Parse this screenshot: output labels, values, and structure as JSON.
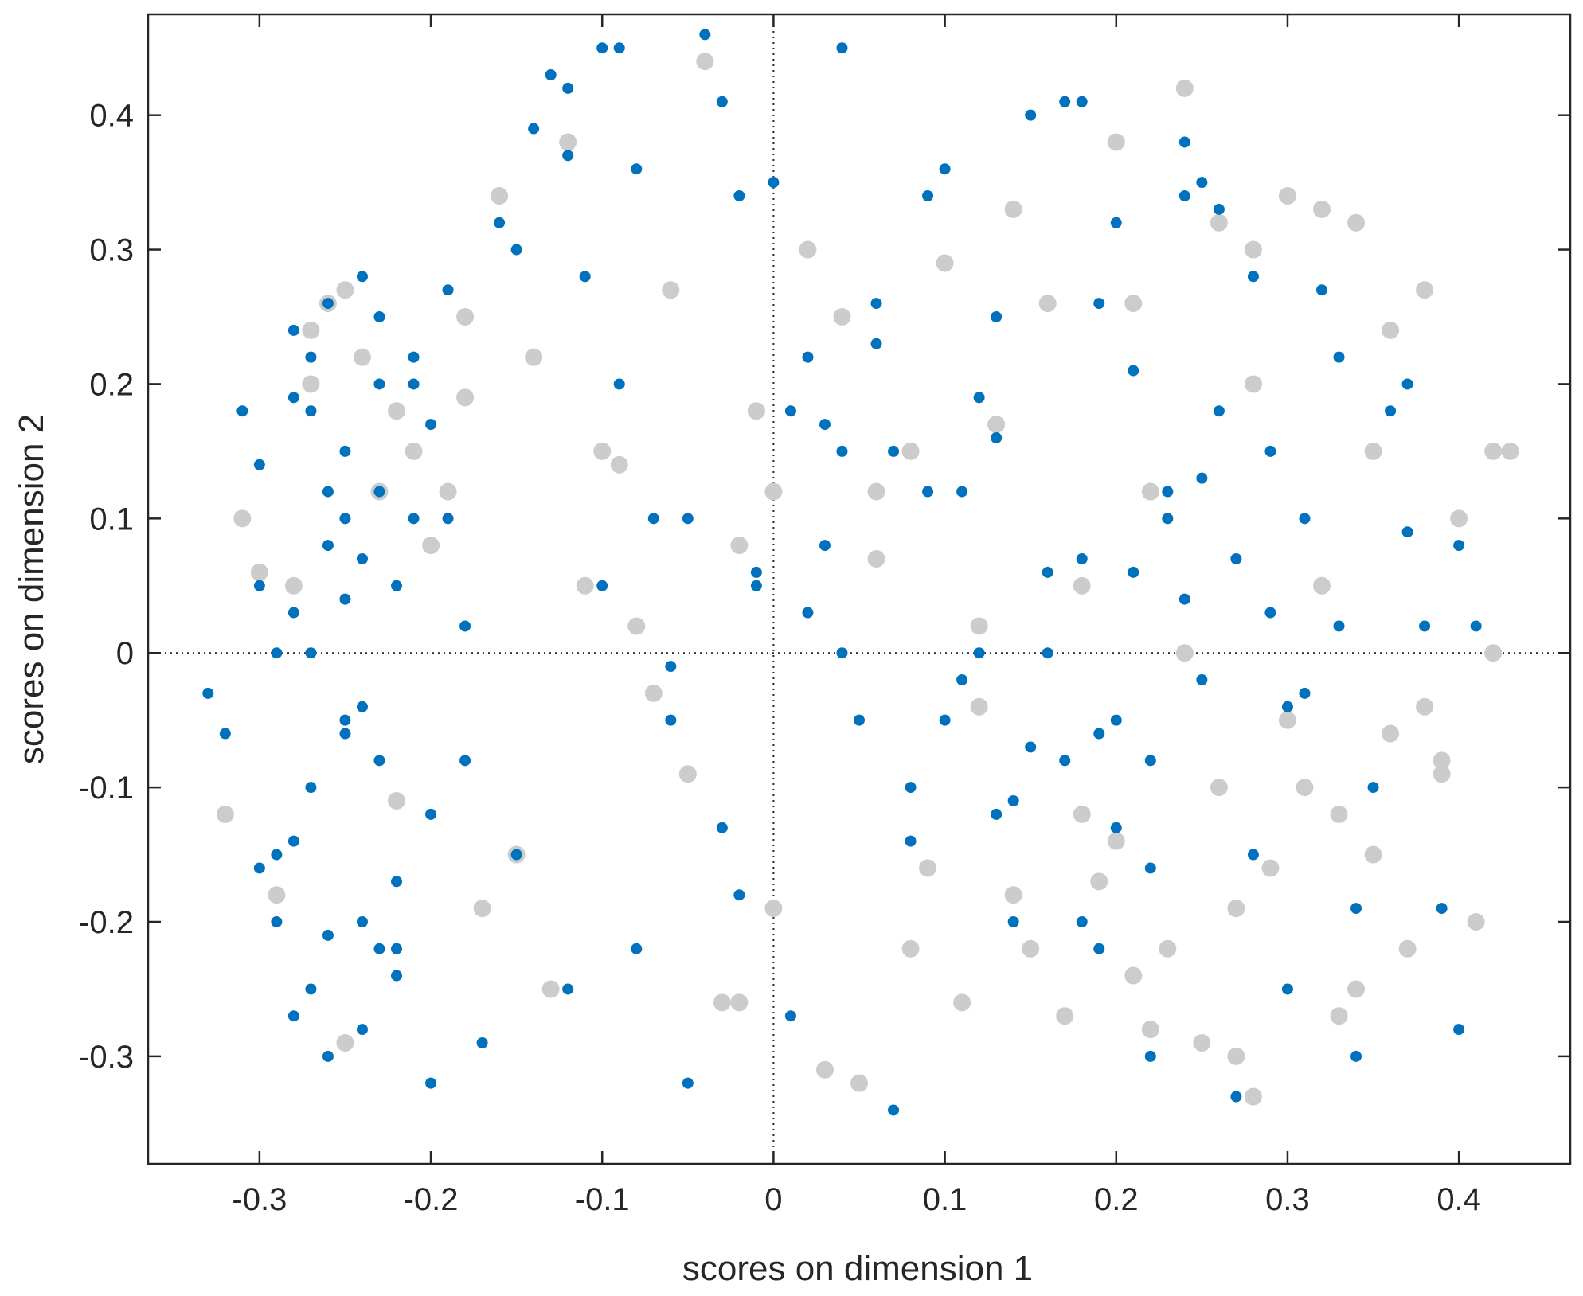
{
  "chart_data": {
    "type": "scatter",
    "title": "",
    "xlabel": "scores on dimension 1",
    "ylabel": "scores on dimension 2",
    "xlim": [
      -0.365,
      0.465
    ],
    "ylim": [
      -0.38,
      0.475
    ],
    "xticks": [
      -0.3,
      -0.2,
      -0.1,
      0,
      0.1,
      0.2,
      0.3,
      0.4
    ],
    "yticks": [
      -0.3,
      -0.2,
      -0.1,
      0,
      0.1,
      0.2,
      0.3,
      0.4
    ],
    "xtick_labels": [
      "-0.3",
      "-0.2",
      "-0.1",
      "0",
      "0.1",
      "0.2",
      "0.3",
      "0.4"
    ],
    "ytick_labels": [
      "-0.3",
      "-0.2",
      "-0.1",
      "0",
      "0.1",
      "0.2",
      "0.3",
      "0.4"
    ],
    "reference_lines": {
      "x": 0,
      "y": 0,
      "style": "dotted"
    },
    "grid": false,
    "legend": "none",
    "colors": {
      "series_1": "#0072bd",
      "series_2": "#cccccc",
      "axes": "#262626"
    },
    "series": [
      {
        "color": "#cccccc",
        "marker": "large-dot",
        "x": [
          -0.31,
          -0.3,
          -0.28,
          -0.27,
          -0.26,
          -0.25,
          -0.24,
          -0.23,
          -0.22,
          -0.21,
          -0.2,
          -0.19,
          -0.18,
          -0.16,
          -0.14,
          -0.12,
          -0.1,
          -0.08,
          -0.06,
          -0.04,
          -0.02,
          0.0,
          0.02,
          0.04,
          0.06,
          0.08,
          0.1,
          0.12,
          0.14,
          0.16,
          0.18,
          0.2,
          0.22,
          0.24,
          0.26,
          0.28,
          0.3,
          0.32,
          0.34,
          0.36,
          0.38,
          0.4,
          0.42,
          0.43,
          -0.32,
          -0.29,
          -0.22,
          -0.17,
          -0.13,
          -0.07,
          -0.02,
          0.03,
          0.09,
          0.15,
          0.21,
          0.27,
          0.33,
          0.39,
          0.25,
          0.19,
          0.28,
          0.34,
          0.31,
          0.22,
          0.12,
          0.05,
          -0.05,
          -0.15,
          -0.25,
          0.36,
          0.41,
          0.37,
          0.29,
          0.17,
          0.23,
          0.3,
          0.35,
          0.26,
          0.18,
          0.08,
          0.0,
          -0.03,
          -0.11,
          0.14,
          0.24,
          0.32,
          0.38,
          0.2,
          0.11,
          0.27,
          0.33,
          0.39,
          0.42,
          0.35,
          0.28,
          0.21,
          0.13,
          0.06,
          -0.01,
          -0.09,
          -0.18,
          -0.27
        ],
        "y": [
          0.1,
          0.06,
          0.05,
          0.2,
          0.26,
          0.27,
          0.22,
          0.12,
          0.18,
          0.15,
          0.08,
          0.12,
          0.19,
          0.34,
          0.22,
          0.38,
          0.15,
          0.02,
          0.27,
          0.44,
          0.08,
          0.12,
          0.3,
          0.25,
          0.07,
          0.15,
          0.29,
          0.02,
          0.33,
          0.26,
          0.05,
          0.38,
          0.12,
          0.42,
          0.32,
          0.2,
          0.34,
          0.33,
          0.32,
          0.24,
          0.27,
          0.1,
          0.15,
          0.15,
          -0.12,
          -0.18,
          -0.11,
          -0.19,
          -0.25,
          -0.03,
          -0.26,
          -0.31,
          -0.16,
          -0.22,
          -0.24,
          -0.3,
          -0.12,
          -0.08,
          -0.29,
          -0.17,
          -0.33,
          -0.25,
          -0.1,
          -0.28,
          -0.04,
          -0.32,
          -0.09,
          -0.15,
          -0.29,
          -0.06,
          -0.2,
          -0.22,
          -0.16,
          -0.27,
          -0.22,
          -0.05,
          -0.15,
          -0.1,
          -0.12,
          -0.22,
          -0.19,
          -0.26,
          0.05,
          -0.18,
          0.0,
          0.05,
          -0.04,
          -0.14,
          -0.26,
          -0.19,
          -0.27,
          -0.09,
          0.0,
          0.15,
          0.3,
          0.26,
          0.17,
          0.12,
          0.18,
          0.14,
          0.25,
          0.24
        ]
      },
      {
        "color": "#0072bd",
        "marker": "dot",
        "x": [
          -0.33,
          -0.31,
          -0.3,
          -0.29,
          -0.28,
          -0.27,
          -0.26,
          -0.25,
          -0.24,
          -0.23,
          -0.22,
          -0.21,
          -0.2,
          -0.19,
          -0.18,
          -0.17,
          -0.16,
          -0.15,
          -0.14,
          -0.13,
          -0.12,
          -0.11,
          -0.1,
          -0.09,
          -0.08,
          -0.07,
          -0.06,
          -0.05,
          -0.04,
          -0.03,
          -0.02,
          -0.01,
          0.0,
          0.01,
          0.02,
          0.03,
          0.04,
          0.05,
          0.06,
          0.07,
          0.08,
          0.09,
          0.1,
          0.11,
          0.12,
          0.13,
          0.14,
          0.15,
          0.16,
          0.17,
          0.18,
          0.19,
          0.2,
          0.21,
          0.22,
          0.23,
          0.24,
          0.25,
          0.26,
          0.27,
          0.28,
          0.29,
          0.3,
          0.31,
          0.32,
          0.33,
          0.34,
          0.35,
          0.36,
          0.37,
          0.38,
          0.39,
          0.4,
          0.41,
          -0.32,
          -0.3,
          -0.28,
          -0.27,
          -0.26,
          -0.25,
          -0.24,
          -0.23,
          -0.22,
          -0.21,
          -0.2,
          -0.29,
          -0.27,
          -0.25,
          -0.24,
          -0.23,
          -0.26,
          -0.28,
          -0.22,
          -0.21,
          -0.19,
          -0.3,
          -0.28,
          -0.26,
          -0.24,
          -0.22,
          -0.2,
          -0.18,
          -0.15,
          -0.12,
          -0.1,
          -0.08,
          -0.05,
          -0.02,
          0.01,
          0.04,
          0.07,
          0.1,
          0.13,
          0.16,
          0.19,
          0.22,
          0.25,
          0.28,
          0.31,
          0.34,
          0.37,
          0.4,
          -0.03,
          0.04,
          -0.09,
          -0.12,
          0.18,
          0.21,
          0.24,
          0.26,
          -0.27,
          -0.25,
          -0.23,
          -0.26,
          -0.24,
          -0.28,
          -0.29,
          -0.27,
          -0.25,
          -0.23,
          0.02,
          0.06,
          0.11,
          0.15,
          0.2,
          0.23,
          0.27,
          0.3,
          0.33,
          0.12,
          0.17,
          0.22,
          0.08,
          0.14,
          0.19,
          0.25,
          0.29,
          -0.06,
          -0.01,
          0.03,
          0.09,
          0.13,
          0.18,
          0.2,
          0.24
        ],
        "y": [
          -0.03,
          0.18,
          0.05,
          -0.2,
          0.24,
          -0.25,
          0.12,
          -0.05,
          0.28,
          0.2,
          -0.22,
          0.1,
          -0.32,
          0.27,
          0.02,
          -0.29,
          0.32,
          0.3,
          0.39,
          0.43,
          0.37,
          0.28,
          0.45,
          0.2,
          0.36,
          0.1,
          -0.05,
          -0.32,
          0.46,
          0.41,
          0.34,
          0.05,
          0.35,
          0.18,
          0.22,
          0.08,
          0.45,
          -0.05,
          0.26,
          0.15,
          -0.1,
          0.34,
          0.36,
          0.12,
          0.19,
          0.25,
          -0.2,
          0.4,
          0.0,
          0.41,
          -0.2,
          0.26,
          0.32,
          0.06,
          -0.3,
          0.1,
          0.38,
          0.35,
          0.18,
          -0.33,
          0.28,
          0.15,
          -0.25,
          0.1,
          0.27,
          0.22,
          -0.3,
          -0.1,
          0.18,
          0.2,
          0.02,
          -0.19,
          0.08,
          0.02,
          -0.06,
          -0.16,
          -0.27,
          -0.1,
          -0.3,
          0.15,
          -0.2,
          0.25,
          0.05,
          0.22,
          -0.12,
          0.0,
          0.18,
          -0.06,
          -0.28,
          0.12,
          0.08,
          -0.14,
          -0.24,
          0.2,
          0.1,
          0.14,
          0.03,
          -0.21,
          0.07,
          -0.17,
          0.17,
          -0.08,
          -0.15,
          -0.25,
          0.05,
          -0.22,
          0.1,
          -0.18,
          -0.27,
          0.0,
          -0.34,
          -0.05,
          -0.12,
          0.06,
          -0.22,
          -0.08,
          0.13,
          -0.15,
          -0.03,
          -0.19,
          0.09,
          -0.28,
          -0.13,
          0.15,
          0.45,
          0.42,
          0.41,
          0.21,
          0.34,
          0.33,
          0.22,
          0.04,
          -0.08,
          0.26,
          -0.04,
          0.19,
          -0.15,
          0.0,
          0.1,
          -0.22,
          0.03,
          0.23,
          -0.02,
          -0.07,
          -0.13,
          0.12,
          0.07,
          -0.04,
          0.02,
          0.0,
          -0.08,
          -0.16,
          -0.14,
          -0.11,
          -0.06,
          -0.02,
          0.03,
          -0.01,
          0.06,
          0.17,
          0.12,
          0.16,
          0.07,
          -0.05,
          0.04
        ]
      }
    ]
  }
}
